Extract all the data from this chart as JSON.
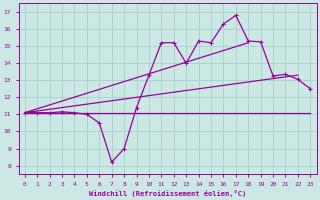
{
  "xlabel": "Windchill (Refroidissement éolien,°C)",
  "xlim": [
    -0.5,
    23.5
  ],
  "ylim": [
    7.5,
    17.5
  ],
  "yticks": [
    8,
    9,
    10,
    11,
    12,
    13,
    14,
    15,
    16,
    17
  ],
  "xticks": [
    0,
    1,
    2,
    3,
    4,
    5,
    6,
    7,
    8,
    9,
    10,
    11,
    12,
    13,
    14,
    15,
    16,
    17,
    18,
    19,
    20,
    21,
    22,
    23
  ],
  "bg_color": "#cce8e4",
  "grid_color": "#aad4cf",
  "line_color": "#990099",
  "flat_line": {
    "x": [
      0,
      23
    ],
    "y": [
      11.1,
      11.1
    ]
  },
  "zigzag_line": {
    "x": [
      0,
      1,
      2,
      3,
      4,
      5,
      6,
      7,
      8,
      9,
      10,
      11,
      12,
      13,
      14,
      15,
      16,
      17,
      18,
      19,
      20,
      21,
      22,
      23
    ],
    "y": [
      11.1,
      11.1,
      11.1,
      11.15,
      11.1,
      11.0,
      10.5,
      8.2,
      9.0,
      11.4,
      13.3,
      15.2,
      15.2,
      14.0,
      15.3,
      15.2,
      16.3,
      16.8,
      15.3,
      15.25,
      13.25,
      13.35,
      13.05,
      12.5
    ]
  },
  "lower_diag": {
    "x": [
      0,
      22
    ],
    "y": [
      11.1,
      13.3
    ]
  },
  "upper_diag": {
    "x": [
      0,
      18
    ],
    "y": [
      11.1,
      15.2
    ]
  }
}
